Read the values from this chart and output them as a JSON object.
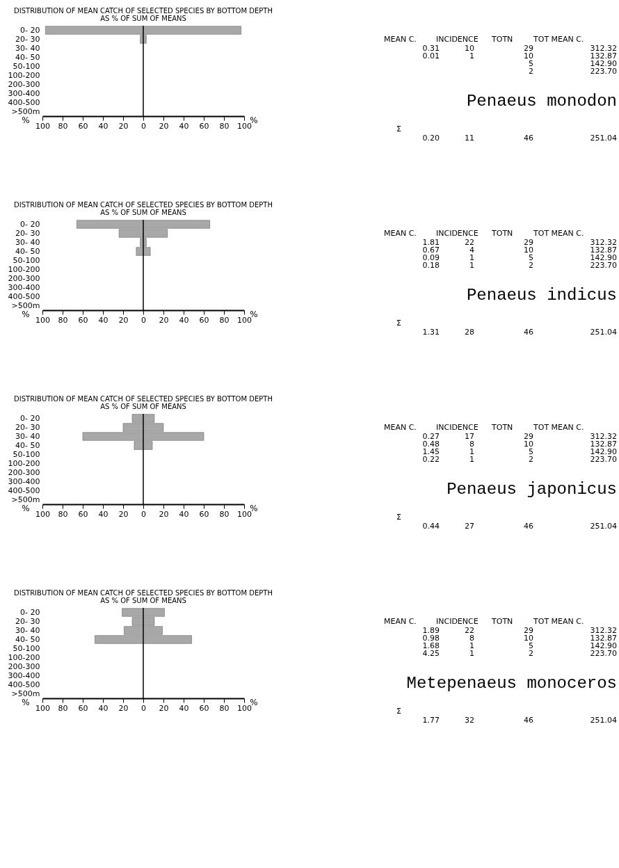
{
  "chart_data": [
    {
      "type": "bar",
      "orientation": "horizontal",
      "title": "DISTRIBUTION OF MEAN CATCH OF SELECTED SPECIES BY BOTTOM DEPTH",
      "subtitle": "AS % OF SUM OF MEANS",
      "categories": [
        "0- 20",
        "20- 30",
        "30- 40",
        "40- 50",
        "50-100",
        "100-200",
        "200-300",
        "300-400",
        "400-500",
        ">500m"
      ],
      "base": [
        -97,
        -3,
        null,
        null,
        null,
        null,
        null,
        null,
        null,
        null
      ],
      "values": [
        194,
        6,
        null,
        null,
        null,
        null,
        null,
        null,
        null,
        null
      ],
      "color": "#a8a8a8",
      "xlim": [
        -100,
        100
      ],
      "xticks": [
        {
          "value": -100,
          "label": "100"
        },
        {
          "value": -80,
          "label": "80"
        },
        {
          "value": -60,
          "label": "60"
        },
        {
          "value": -40,
          "label": "40"
        },
        {
          "value": -20,
          "label": "20"
        },
        0,
        20,
        40,
        60,
        80,
        100
      ],
      "ref_lines": [
        {
          "axis": "x",
          "value": 0
        }
      ],
      "annotations": [
        "%",
        "%"
      ]
    },
    {
      "type": "other",
      "title": "Penaeus monodon",
      "categories": [
        "MEAN C.",
        "INCIDENCE",
        "TOTN",
        "TOT MEAN C."
      ],
      "y_categories": [
        null,
        null,
        null,
        null,
        "Σ"
      ],
      "cell_labels": [
        [
          "0.31",
          "10",
          "29",
          "312.32"
        ],
        [
          "0.01",
          "1",
          "10",
          "132.87"
        ],
        [
          null,
          null,
          "5",
          "142.90"
        ],
        [
          null,
          null,
          "2",
          "223.70"
        ],
        [
          "0.20",
          "11",
          "46",
          "251.04"
        ]
      ]
    },
    {
      "type": "bar",
      "orientation": "horizontal",
      "title": "DISTRIBUTION OF MEAN CATCH OF SELECTED SPECIES BY BOTTOM DEPTH",
      "subtitle": "AS % OF SUM OF MEANS",
      "categories": [
        "0- 20",
        "20- 30",
        "30- 40",
        "40- 50",
        "50-100",
        "100-200",
        "200-300",
        "300-400",
        "400-500",
        ">500m"
      ],
      "base": [
        -66,
        -24,
        -3,
        -7,
        null,
        null,
        null,
        null,
        null,
        null
      ],
      "values": [
        132,
        48,
        6,
        14,
        null,
        null,
        null,
        null,
        null,
        null
      ],
      "color": "#a8a8a8",
      "xlim": [
        -100,
        100
      ],
      "xticks": [
        {
          "value": -100,
          "label": "100"
        },
        {
          "value": -80,
          "label": "80"
        },
        {
          "value": -60,
          "label": "60"
        },
        {
          "value": -40,
          "label": "40"
        },
        {
          "value": -20,
          "label": "20"
        },
        0,
        20,
        40,
        60,
        80,
        100
      ],
      "ref_lines": [
        {
          "axis": "x",
          "value": 0
        }
      ],
      "annotations": [
        "%",
        "%"
      ]
    },
    {
      "type": "other",
      "title": "Penaeus indicus",
      "categories": [
        "MEAN C.",
        "INCIDENCE",
        "TOTN",
        "TOT MEAN C."
      ],
      "y_categories": [
        null,
        null,
        null,
        null,
        "Σ"
      ],
      "cell_labels": [
        [
          "1.81",
          "22",
          "29",
          "312.32"
        ],
        [
          "0.67",
          "4",
          "10",
          "132.87"
        ],
        [
          "0.09",
          "1",
          "5",
          "142.90"
        ],
        [
          "0.18",
          "1",
          "2",
          "223.70"
        ],
        [
          "1.31",
          "28",
          "46",
          "251.04"
        ]
      ]
    },
    {
      "type": "bar",
      "orientation": "horizontal",
      "title": "DISTRIBUTION OF MEAN CATCH OF SELECTED SPECIES BY BOTTOM DEPTH",
      "subtitle": "AS % OF SUM OF MEANS",
      "categories": [
        "0- 20",
        "20- 30",
        "30- 40",
        "40- 50",
        "50-100",
        "100-200",
        "200-300",
        "300-400",
        "400-500",
        ">500m"
      ],
      "base": [
        -11,
        -20,
        -60,
        -9,
        null,
        null,
        null,
        null,
        null,
        null
      ],
      "values": [
        22,
        40,
        120,
        18,
        null,
        null,
        null,
        null,
        null,
        null
      ],
      "color": "#a8a8a8",
      "xlim": [
        -100,
        100
      ],
      "xticks": [
        {
          "value": -100,
          "label": "100"
        },
        {
          "value": -80,
          "label": "80"
        },
        {
          "value": -60,
          "label": "60"
        },
        {
          "value": -40,
          "label": "40"
        },
        {
          "value": -20,
          "label": "20"
        },
        0,
        20,
        40,
        60,
        80,
        100
      ],
      "ref_lines": [
        {
          "axis": "x",
          "value": 0
        }
      ],
      "annotations": [
        "%",
        "%"
      ]
    },
    {
      "type": "other",
      "title": "Penaeus japonicus",
      "categories": [
        "MEAN C.",
        "INCIDENCE",
        "TOTN",
        "TOT MEAN C."
      ],
      "y_categories": [
        null,
        null,
        null,
        null,
        "Σ"
      ],
      "cell_labels": [
        [
          "0.27",
          "17",
          "29",
          "312.32"
        ],
        [
          "0.48",
          "8",
          "10",
          "132.87"
        ],
        [
          "1.45",
          "1",
          "5",
          "142.90"
        ],
        [
          "0.22",
          "1",
          "2",
          "223.70"
        ],
        [
          "0.44",
          "27",
          "46",
          "251.04"
        ]
      ]
    },
    {
      "type": "bar",
      "orientation": "horizontal",
      "title": "DISTRIBUTION OF MEAN CATCH OF SELECTED SPECIES BY BOTTOM DEPTH",
      "subtitle": "AS % OF SUM OF MEANS",
      "categories": [
        "0- 20",
        "20- 30",
        "30- 40",
        "40- 50",
        "50-100",
        "100-200",
        "200-300",
        "300-400",
        "400-500",
        ">500m"
      ],
      "base": [
        -21,
        -11,
        -19,
        -48,
        null,
        null,
        null,
        null,
        null,
        null
      ],
      "values": [
        42,
        22,
        38,
        96,
        null,
        null,
        null,
        null,
        null,
        null
      ],
      "color": "#a8a8a8",
      "xlim": [
        -100,
        100
      ],
      "xticks": [
        {
          "value": -100,
          "label": "100"
        },
        {
          "value": -80,
          "label": "80"
        },
        {
          "value": -60,
          "label": "60"
        },
        {
          "value": -40,
          "label": "40"
        },
        {
          "value": -20,
          "label": "20"
        },
        0,
        20,
        40,
        60,
        80,
        100
      ],
      "ref_lines": [
        {
          "axis": "x",
          "value": 0
        }
      ],
      "annotations": [
        "%",
        "%"
      ]
    },
    {
      "type": "other",
      "title": "Metepenaeus monoceros",
      "categories": [
        "MEAN C.",
        "INCIDENCE",
        "TOTN",
        "TOT MEAN C."
      ],
      "y_categories": [
        null,
        null,
        null,
        null,
        "Σ"
      ],
      "cell_labels": [
        [
          "1.89",
          "22",
          "29",
          "312.32"
        ],
        [
          "0.98",
          "8",
          "10",
          "132.87"
        ],
        [
          "1.68",
          "1",
          "5",
          "142.90"
        ],
        [
          "4.25",
          "1",
          "2",
          "223.70"
        ],
        [
          "1.77",
          "32",
          "46",
          "251.04"
        ]
      ]
    }
  ]
}
